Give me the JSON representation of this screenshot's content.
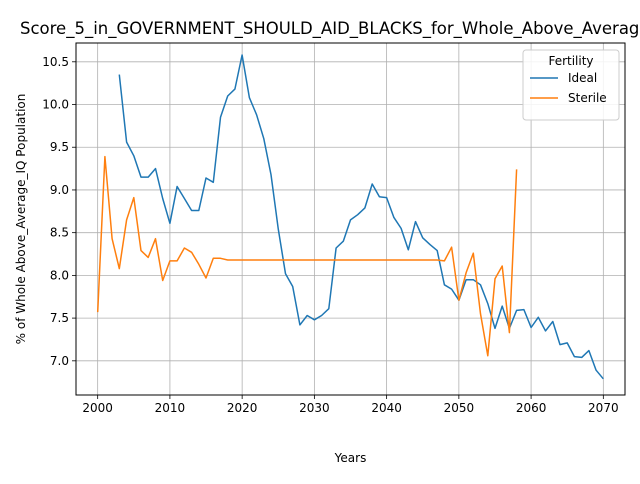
{
  "chart_data": {
    "type": "line",
    "title": "Score_5_in_GOVERNMENT_SHOULD_AID_BLACKS_for_Whole_Above_Average_IQ",
    "xlabel": "Years",
    "ylabel": "% of Whole Above_Average_IQ Population",
    "xlim": [
      1997,
      2073
    ],
    "ylim": [
      6.6,
      10.72
    ],
    "xticks": [
      2000,
      2010,
      2020,
      2030,
      2040,
      2050,
      2060,
      2070
    ],
    "yticks": [
      7.0,
      7.5,
      8.0,
      8.5,
      9.0,
      9.5,
      10.0,
      10.5
    ],
    "xtick_labels": [
      "2000",
      "2010",
      "2020",
      "2030",
      "2040",
      "2050",
      "2060",
      "2070"
    ],
    "ytick_labels": [
      "7.0",
      "7.5",
      "8.0",
      "8.5",
      "9.0",
      "9.5",
      "10.0",
      "10.5"
    ],
    "grid": true,
    "legend": {
      "title": "Fertility",
      "placement": "top-right"
    },
    "series": [
      {
        "name": "Ideal",
        "color": "#1f77b4",
        "x": [
          2003,
          2004,
          2005,
          2006,
          2007,
          2008,
          2009,
          2010,
          2011,
          2012,
          2013,
          2014,
          2015,
          2016,
          2017,
          2018,
          2019,
          2020,
          2021,
          2022,
          2023,
          2024,
          2025,
          2026,
          2027,
          2028,
          2029,
          2030,
          2031,
          2032,
          2033,
          2034,
          2035,
          2036,
          2037,
          2038,
          2039,
          2040,
          2041,
          2042,
          2043,
          2044,
          2045,
          2046,
          2047,
          2048,
          2049,
          2050,
          2051,
          2052,
          2053,
          2054,
          2055,
          2056,
          2057,
          2058,
          2059,
          2060,
          2061,
          2062,
          2063,
          2064,
          2065,
          2066,
          2067,
          2068,
          2069,
          2070
        ],
        "y": [
          10.35,
          9.56,
          9.4,
          9.15,
          9.15,
          9.25,
          8.9,
          8.61,
          9.04,
          8.9,
          8.76,
          8.76,
          9.14,
          9.09,
          9.85,
          10.1,
          10.18,
          10.58,
          10.08,
          9.88,
          9.6,
          9.18,
          8.54,
          8.02,
          7.87,
          7.42,
          7.53,
          7.48,
          7.53,
          7.61,
          8.32,
          8.4,
          8.65,
          8.71,
          8.79,
          9.07,
          8.92,
          8.91,
          8.68,
          8.55,
          8.3,
          8.63,
          8.44,
          8.36,
          8.29,
          7.89,
          7.84,
          7.71,
          7.95,
          7.95,
          7.89,
          7.67,
          7.38,
          7.64,
          7.38,
          7.59,
          7.6,
          7.39,
          7.51,
          7.35,
          7.46,
          7.19,
          7.21,
          7.05,
          7.04,
          7.12,
          6.89,
          6.79
        ]
      },
      {
        "name": "Sterile",
        "color": "#ff7f0e",
        "x": [
          2000,
          2001,
          2002,
          2003,
          2004,
          2005,
          2006,
          2007,
          2008,
          2009,
          2010,
          2011,
          2012,
          2013,
          2014,
          2015,
          2016,
          2017,
          2018,
          2019,
          2020,
          2021,
          2022,
          2023,
          2024,
          2025,
          2026,
          2027,
          2028,
          2029,
          2030,
          2031,
          2032,
          2033,
          2034,
          2035,
          2036,
          2037,
          2038,
          2039,
          2040,
          2041,
          2042,
          2043,
          2044,
          2045,
          2046,
          2047,
          2048,
          2049,
          2050,
          2051,
          2052,
          2053,
          2054,
          2055,
          2056,
          2057,
          2058
        ],
        "y": [
          7.57,
          9.39,
          8.43,
          8.08,
          8.65,
          8.91,
          8.29,
          8.21,
          8.43,
          7.94,
          8.17,
          8.17,
          8.32,
          8.27,
          8.13,
          7.97,
          8.2,
          8.2,
          8.18,
          8.18,
          8.18,
          8.18,
          8.18,
          8.18,
          8.18,
          8.18,
          8.18,
          8.18,
          8.18,
          8.18,
          8.18,
          8.18,
          8.18,
          8.18,
          8.18,
          8.18,
          8.18,
          8.18,
          8.18,
          8.18,
          8.18,
          8.18,
          8.18,
          8.18,
          8.18,
          8.18,
          8.18,
          8.18,
          8.17,
          8.33,
          7.71,
          8.03,
          8.26,
          7.55,
          7.06,
          7.96,
          8.11,
          7.33,
          9.24
        ]
      }
    ]
  }
}
